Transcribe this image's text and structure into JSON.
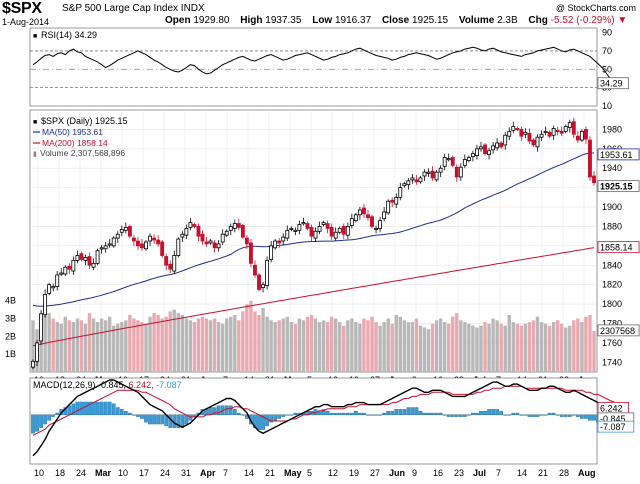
{
  "header": {
    "symbol": "$SPX",
    "name": "S&P 500 Large Cap Index",
    "exchange": "INDX",
    "watermark": "@ StockCharts.com",
    "date": "1-Aug-2014",
    "open_label": "Open",
    "open_value": "1929.80",
    "high_label": "High",
    "high_value": "1937.35",
    "low_label": "Low",
    "low_value": "1916.37",
    "close_label": "Close",
    "close_value": "1925.15",
    "volume_label": "Volume",
    "volume_value": "2.3B",
    "chg_label": "Chg",
    "chg_value": "-5.52 (-0.29%)",
    "chg_marker": "▼",
    "colors": {
      "down": "#c8102e",
      "up": "#000000"
    }
  },
  "chart_data": [
    {
      "type": "line",
      "panel": "rsi",
      "legend": "RSI(14) 34.29",
      "value_label": "34.29",
      "ylim": [
        10,
        95
      ],
      "yticks": [
        10,
        30,
        50,
        70,
        90
      ],
      "levels": [
        30,
        50,
        70
      ],
      "color": "#000000",
      "values": [
        55,
        58,
        62,
        65,
        66,
        64,
        67,
        68,
        66,
        70,
        72,
        69,
        68,
        64,
        62,
        60,
        58,
        55,
        52,
        54,
        57,
        60,
        62,
        64,
        66,
        68,
        70,
        68,
        66,
        63,
        60,
        58,
        55,
        52,
        50,
        48,
        47,
        49,
        52,
        55,
        54,
        50,
        47,
        45,
        46,
        49,
        52,
        55,
        57,
        59,
        61,
        63,
        64,
        62,
        60,
        59,
        61,
        63,
        65,
        66,
        64,
        62,
        60,
        61,
        63,
        65,
        66,
        67,
        68,
        66,
        64,
        62,
        60,
        61,
        63,
        64,
        66,
        67,
        68,
        70,
        72,
        73,
        71,
        69,
        67,
        65,
        64,
        63,
        62,
        60,
        61,
        63,
        64,
        66,
        67,
        68,
        67,
        66,
        65,
        63,
        61,
        62,
        64,
        66,
        68,
        69,
        70,
        72,
        73,
        74,
        73,
        71,
        70,
        72,
        73,
        71,
        69,
        68,
        67,
        66,
        65,
        64,
        66,
        67,
        68,
        70,
        71,
        72,
        73,
        74,
        72,
        70,
        69,
        71,
        72,
        70,
        68,
        66,
        64,
        60,
        56,
        52,
        46,
        40,
        34.29
      ]
    },
    {
      "type": "candlestick",
      "panel": "price",
      "title": "$SPX (Daily) 1925.15",
      "ylim": [
        1730,
        2000
      ],
      "yticks": [
        1740,
        1760,
        1780,
        1800,
        1820,
        1840,
        1860,
        1880,
        1900,
        1920,
        1940,
        1960,
        1980
      ],
      "ma50_legend": "MA(50) 1953.61",
      "ma50_value": "1953.61",
      "ma200_legend": "MA(200) 1858.14",
      "ma200_value": "1858.14",
      "close_label": "1925.15",
      "volume_legend": "Volume 2,307,568,896",
      "volume_value": "2307568",
      "volume_axis": [
        "4B",
        "3B",
        "2B",
        "1B"
      ],
      "volume_max": 4.6,
      "colors": {
        "up": "#000000",
        "down": "#c8102e",
        "ma50": "#1f2f8f",
        "ma200": "#c8102e",
        "vol_up": "#b8b8b8",
        "vol_down": "#e9a9b0"
      },
      "x_labels": [
        "10",
        "18",
        "24",
        "Mar",
        "10",
        "17",
        "24",
        "31",
        "Apr",
        "7",
        "14",
        "21",
        "May",
        "5",
        "12",
        "19",
        "27",
        "Jun",
        "9",
        "16",
        "23",
        "Jul",
        "7",
        "14",
        "21",
        "28",
        "Aug"
      ],
      "closes": [
        1741,
        1760,
        1790,
        1810,
        1820,
        1818,
        1830,
        1832,
        1838,
        1836,
        1845,
        1850,
        1846,
        1848,
        1840,
        1842,
        1855,
        1858,
        1860,
        1862,
        1868,
        1872,
        1877,
        1879,
        1870,
        1865,
        1860,
        1858,
        1864,
        1870,
        1866,
        1862,
        1850,
        1840,
        1836,
        1850,
        1867,
        1872,
        1878,
        1884,
        1880,
        1870,
        1865,
        1862,
        1865,
        1858,
        1862,
        1872,
        1875,
        1880,
        1883,
        1879,
        1869,
        1862,
        1842,
        1830,
        1815,
        1820,
        1845,
        1860,
        1865,
        1863,
        1869,
        1876,
        1878,
        1876,
        1882,
        1884,
        1878,
        1870,
        1875,
        1880,
        1884,
        1878,
        1870,
        1874,
        1878,
        1872,
        1880,
        1888,
        1892,
        1897,
        1893,
        1889,
        1880,
        1878,
        1886,
        1895,
        1906,
        1905,
        1910,
        1920,
        1924,
        1927,
        1930,
        1926,
        1930,
        1936,
        1936,
        1930,
        1936,
        1940,
        1951,
        1950,
        1943,
        1931,
        1941,
        1949,
        1951,
        1955,
        1960,
        1962,
        1955,
        1958,
        1963,
        1966,
        1962,
        1974,
        1978,
        1983,
        1980,
        1973,
        1977,
        1968,
        1964,
        1972,
        1975,
        1978,
        1973,
        1981,
        1978,
        1976,
        1983,
        1987,
        1975,
        1969,
        1978,
        1970,
        1931,
        1925.15
      ],
      "volumes": [
        2.9,
        2.4,
        2.7,
        3.2,
        3.3,
        3.0,
        2.8,
        2.7,
        3.1,
        2.9,
        2.8,
        3.0,
        2.9,
        2.7,
        3.3,
        3.0,
        2.8,
        3.0,
        2.9,
        3.1,
        2.6,
        2.7,
        2.8,
        2.9,
        3.2,
        3.0,
        2.9,
        2.8,
        2.7,
        3.1,
        3.3,
        3.2,
        3.0,
        3.1,
        3.4,
        3.5,
        3.3,
        3.2,
        3.0,
        2.9,
        2.8,
        3.0,
        3.1,
        3.0,
        2.9,
        3.0,
        2.8,
        2.7,
        3.0,
        3.1,
        3.2,
        2.9,
        3.4,
        3.8,
        4.0,
        3.4,
        3.2,
        3.6,
        3.1,
        2.9,
        2.8,
        2.9,
        3.0,
        3.1,
        2.8,
        2.7,
        3.0,
        2.9,
        3.1,
        3.2,
        3.0,
        2.8,
        2.9,
        2.8,
        3.1,
        3.0,
        2.8,
        2.6,
        2.9,
        3.0,
        2.8,
        2.7,
        3.0,
        2.9,
        3.1,
        2.8,
        2.6,
        2.8,
        3.0,
        2.7,
        3.2,
        3.1,
        2.9,
        2.8,
        2.8,
        3.0,
        2.6,
        2.5,
        2.4,
        2.7,
        2.9,
        3.0,
        2.8,
        2.7,
        3.1,
        3.3,
        2.9,
        2.8,
        2.7,
        2.6,
        2.5,
        2.6,
        2.8,
        2.7,
        3.0,
        2.9,
        2.7,
        2.6,
        3.2,
        2.8,
        2.7,
        2.6,
        2.7,
        2.8,
        2.9,
        3.1,
        2.8,
        2.7,
        2.6,
        2.8,
        2.9,
        2.7,
        2.5,
        2.6,
        2.9,
        3.0,
        2.8,
        3.1,
        3.2,
        2.3
      ]
    },
    {
      "type": "line",
      "panel": "macd",
      "legend_main": "MACD(12,26,9) -0.845,",
      "legend_signal": "6.242,",
      "legend_hist": "-7.087",
      "signal_label": "6.242",
      "macd_label": "-0.845",
      "hist_label": "-7.087",
      "colors": {
        "macd": "#000000",
        "signal": "#c8102e",
        "hist": "#3a9bd5"
      },
      "ylim": [
        -24,
        18
      ],
      "macd": [
        -20,
        -18,
        -15,
        -12,
        -8,
        -5,
        -2,
        1,
        3,
        5,
        7,
        9,
        10,
        11,
        12,
        13,
        14,
        15,
        16,
        17,
        17,
        16,
        15,
        14,
        13,
        12,
        11,
        9,
        7,
        5,
        4,
        3,
        2,
        0,
        -2,
        -4,
        -5,
        -6,
        -5,
        -4,
        -2,
        0,
        2,
        3,
        4,
        5,
        6,
        7,
        8,
        8,
        7,
        5,
        3,
        1,
        -3,
        -6,
        -8,
        -9,
        -8,
        -7,
        -6,
        -5,
        -4,
        -3,
        -2,
        -1,
        0,
        1,
        2,
        3,
        4,
        4,
        5,
        5,
        4,
        4,
        4,
        4,
        5,
        5,
        6,
        6,
        6,
        5,
        5,
        5,
        5,
        6,
        7,
        8,
        9,
        10,
        11,
        12,
        13,
        13,
        12,
        11,
        11,
        12,
        12,
        12,
        11,
        10,
        9,
        9,
        9,
        9,
        10,
        11,
        12,
        13,
        14,
        15,
        16,
        16,
        15,
        14,
        14,
        15,
        15,
        14,
        13,
        12,
        12,
        12,
        13,
        13,
        14,
        14,
        13,
        12,
        11,
        11,
        12,
        11,
        10,
        9,
        8,
        7,
        6,
        4,
        2,
        0,
        -0.845
      ],
      "signal": [
        -10,
        -9,
        -8,
        -7,
        -5,
        -4,
        -3,
        -2,
        -1,
        0,
        1,
        2,
        3,
        4,
        5,
        6,
        7,
        8,
        9,
        10,
        11,
        12,
        12,
        12,
        12,
        12,
        12,
        11,
        11,
        10,
        9,
        8,
        7,
        6,
        5,
        3,
        2,
        1,
        0,
        -1,
        -1,
        -1,
        -1,
        0,
        0,
        1,
        1,
        2,
        3,
        3,
        4,
        4,
        3,
        3,
        2,
        1,
        0,
        -1,
        -2,
        -3,
        -3,
        -3,
        -3,
        -3,
        -2,
        -2,
        -1,
        0,
        0,
        1,
        1,
        2,
        2,
        3,
        3,
        3,
        3,
        3,
        4,
        4,
        4,
        5,
        5,
        5,
        5,
        5,
        5,
        5,
        5,
        6,
        6,
        7,
        8,
        8,
        9,
        9,
        10,
        10,
        10,
        11,
        11,
        11,
        11,
        11,
        10,
        10,
        10,
        10,
        10,
        10,
        11,
        11,
        12,
        12,
        13,
        13,
        13,
        14,
        14,
        14,
        14,
        14,
        13,
        13,
        13,
        13,
        13,
        13,
        13,
        13,
        13,
        13,
        12,
        12,
        12,
        12,
        12,
        11,
        11,
        10,
        10,
        9,
        8,
        7,
        6.242
      ]
    }
  ]
}
